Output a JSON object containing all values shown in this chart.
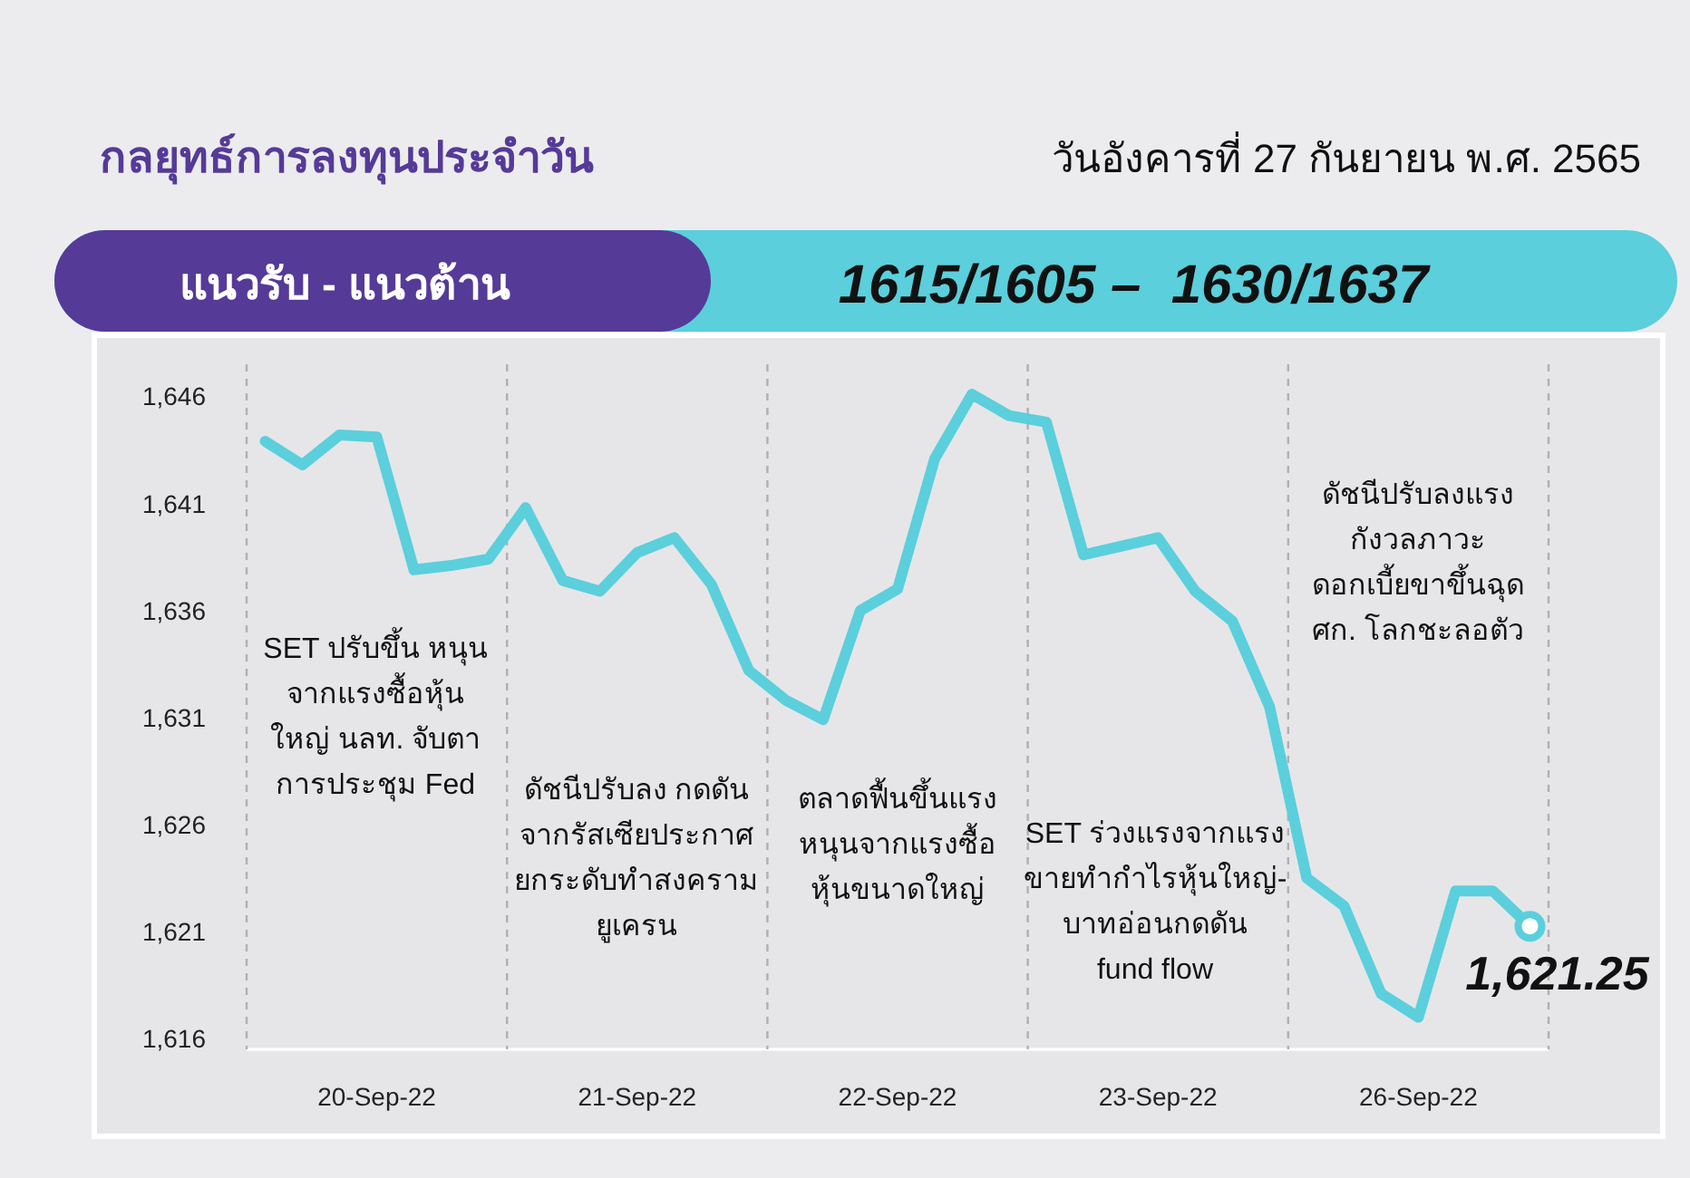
{
  "chart_data": {
    "type": "line",
    "title": "กลยุทธ์การลงทุนประจำวัน",
    "subtitle": "วันอังคารที่ 27 กันยายน พ.ศ. 2565",
    "annotations": [
      "แนวรับ - แนวต้าน",
      "1615/1605 –  1630/1637",
      "SET ปรับขึ้น หนุน\nจากแรงซื้อหุ้น\nใหญ่ นลท. จับตา\nการประชุม Fed",
      "ดัชนีปรับลง กดดัน\nจากรัสเซียประกาศ\nยกระดับทำสงคราม\nยูเครน",
      "ตลาดฟื้นขึ้นแรง\nหนุนจากแรงซื้อ\nหุ้นขนาดใหญ่",
      "SET ร่วงแรงจากแรง\nขายทำกำไรหุ้นใหญ่-\nบาทอ่อนกดดัน\nfund flow",
      "ดัชนีปรับลงแรง\nกังวลภาวะ\nดอกเบี้ยขาขึ้นฉุด\nศก. โลกชะลอตัว"
    ],
    "categories": [
      null,
      null,
      null,
      "20-Sep-22",
      null,
      null,
      null,
      null,
      null,
      null,
      "21-Sep-22",
      null,
      null,
      null,
      null,
      null,
      null,
      "22-Sep-22",
      null,
      null,
      null,
      null,
      null,
      null,
      "23-Sep-22",
      null,
      null,
      null,
      null,
      null,
      null,
      "26-Sep-22",
      null,
      null,
      null
    ],
    "series": [
      {
        "color": "#5bcfdc",
        "values": [
          1643.9,
          1642.8,
          1644.2,
          1644.1,
          1637.9,
          1638.1,
          1638.4,
          1640.8,
          1637.4,
          1636.9,
          1638.7,
          1639.4,
          1637.2,
          1633.2,
          1631.8,
          1630.9,
          1636.0,
          1637.0,
          1643.1,
          1646.1,
          1645.1,
          1644.8,
          1638.6,
          1639.0,
          1639.4,
          1636.9,
          1635.5,
          1631.5,
          1623.5,
          1622.2,
          1618.1,
          1617.0,
          1622.9,
          1622.9,
          1621.25
        ],
        "value_labels": [
          null,
          null,
          null,
          null,
          null,
          null,
          null,
          null,
          null,
          null,
          null,
          null,
          null,
          null,
          null,
          null,
          null,
          null,
          null,
          null,
          null,
          null,
          null,
          null,
          null,
          null,
          null,
          null,
          null,
          null,
          null,
          null,
          null,
          null,
          "1,621.25"
        ]
      }
    ],
    "ylim": [
      1615.5,
      1647.5
    ],
    "yticks": [
      {
        "value": 1616,
        "label": "1,616"
      },
      {
        "value": 1621,
        "label": "1,621"
      },
      {
        "value": 1626,
        "label": "1,626"
      },
      {
        "value": 1631,
        "label": "1,631"
      },
      {
        "value": 1636,
        "label": "1,636"
      },
      {
        "value": 1641,
        "label": "1,641"
      },
      {
        "value": 1646,
        "label": "1,646"
      }
    ],
    "grid": false,
    "line_style": "solid",
    "marker": "none"
  }
}
